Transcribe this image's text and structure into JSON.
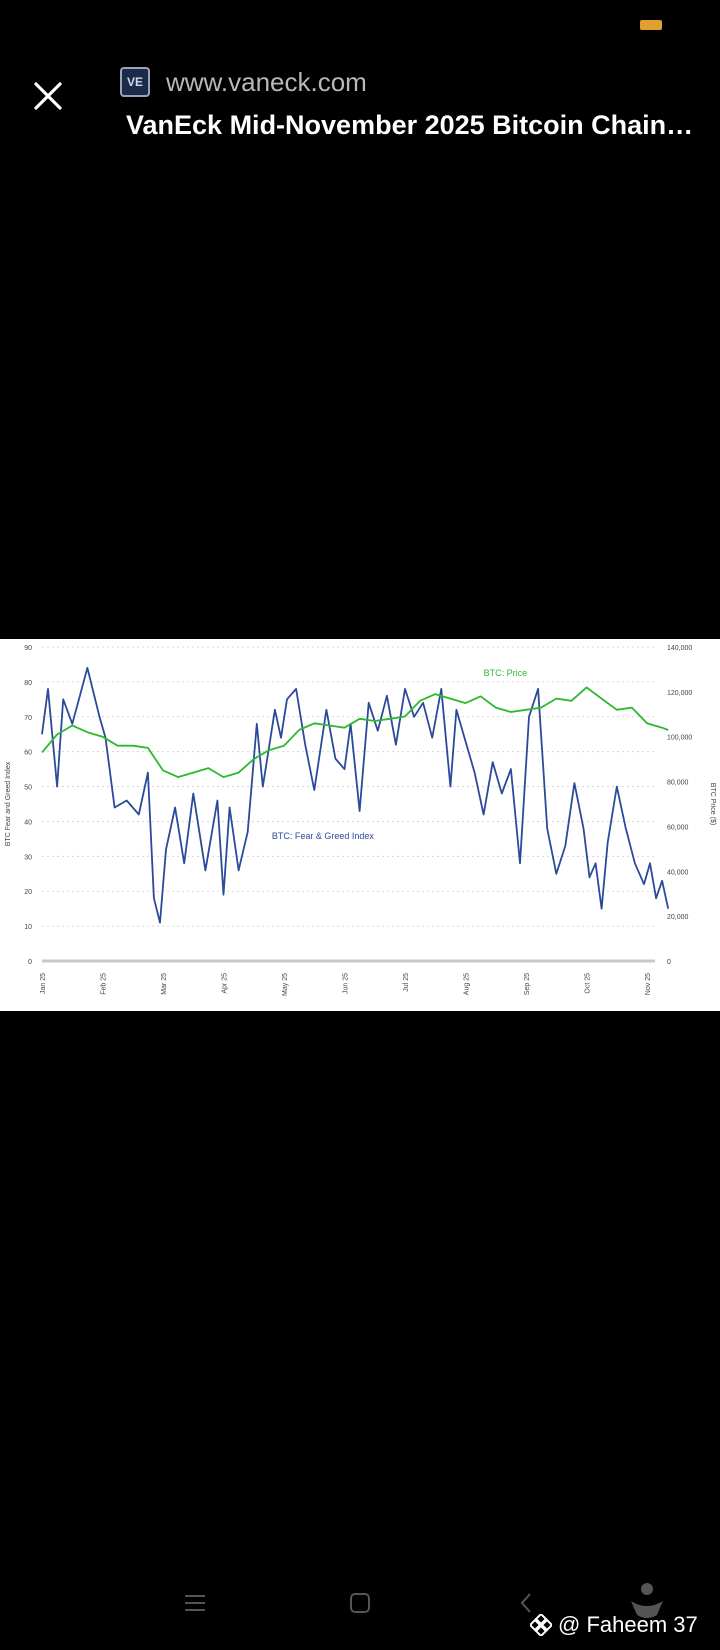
{
  "header": {
    "url": "www.vaneck.com",
    "title": "VanEck Mid-November 2025 Bitcoin Chain…",
    "favicon_text": "VE",
    "close_icon": "close-icon"
  },
  "watermark": {
    "text": "@ Faheem 37"
  },
  "nav": {
    "icons": [
      "menu-icon",
      "home-square-icon",
      "back-chevron-icon",
      "assistant-icon"
    ]
  },
  "colors": {
    "background": "#000000",
    "price_line": "#2eb82e",
    "index_line": "#2b4a9a",
    "battery": "#e0a030"
  },
  "chart_data": {
    "type": "line",
    "x_categories": [
      "Jan 25",
      "Feb 25",
      "Mar 25",
      "Apr 25",
      "May 25",
      "Jun 25",
      "Jul 25",
      "Aug 25",
      "Sep 25",
      "Oct 25",
      "Nov 25"
    ],
    "y_left": {
      "label": "BTC Fear and Greed Index",
      "ticks": [
        "0",
        "10",
        "20",
        "30",
        "40",
        "50",
        "60",
        "70",
        "80",
        "90"
      ],
      "range": [
        0,
        90
      ]
    },
    "y_right": {
      "label": "BTC Price ($)",
      "ticks": [
        "0",
        "20,000",
        "40,000",
        "60,000",
        "80,000",
        "100,000",
        "120,000",
        "140,000"
      ],
      "range": [
        0,
        140000
      ]
    },
    "grid": true,
    "series": [
      {
        "name": "BTC: Fear & Greed Index",
        "axis": "left",
        "x": [
          0,
          0.1,
          0.25,
          0.35,
          0.5,
          0.75,
          0.95,
          1.05,
          1.2,
          1.4,
          1.6,
          1.75,
          1.85,
          1.95,
          2.05,
          2.2,
          2.35,
          2.5,
          2.7,
          2.9,
          3.0,
          3.1,
          3.25,
          3.4,
          3.55,
          3.65,
          3.75,
          3.85,
          3.95,
          4.05,
          4.2,
          4.35,
          4.5,
          4.7,
          4.85,
          5.0,
          5.1,
          5.25,
          5.4,
          5.55,
          5.7,
          5.85,
          6.0,
          6.15,
          6.3,
          6.45,
          6.6,
          6.75,
          6.85,
          7.0,
          7.15,
          7.3,
          7.45,
          7.6,
          7.75,
          7.9,
          8.05,
          8.2,
          8.35,
          8.5,
          8.65,
          8.8,
          8.95,
          9.05,
          9.15,
          9.25,
          9.35,
          9.5,
          9.65,
          9.8,
          9.95,
          10.05,
          10.15,
          10.25,
          10.35
        ],
        "values": [
          65,
          78,
          50,
          75,
          68,
          84,
          70,
          64,
          44,
          46,
          42,
          54,
          18,
          11,
          32,
          44,
          28,
          48,
          26,
          46,
          19,
          44,
          26,
          37,
          68,
          50,
          61,
          72,
          64,
          75,
          78,
          62,
          49,
          72,
          58,
          55,
          68,
          43,
          74,
          66,
          76,
          62,
          78,
          70,
          74,
          64,
          78,
          50,
          72,
          63,
          54,
          42,
          57,
          48,
          55,
          28,
          70,
          78,
          38,
          25,
          33,
          51,
          38,
          24,
          28,
          15,
          34,
          50,
          38,
          28,
          22,
          28,
          18,
          23,
          15
        ]
      },
      {
        "name": "BTC: Price",
        "axis": "right",
        "x": [
          0,
          0.25,
          0.5,
          0.75,
          1.0,
          1.25,
          1.5,
          1.75,
          2.0,
          2.25,
          2.5,
          2.75,
          3.0,
          3.25,
          3.5,
          3.75,
          4.0,
          4.25,
          4.5,
          4.75,
          5.0,
          5.25,
          5.5,
          5.75,
          6.0,
          6.25,
          6.5,
          6.75,
          7.0,
          7.25,
          7.5,
          7.75,
          8.0,
          8.25,
          8.5,
          8.75,
          9.0,
          9.25,
          9.5,
          9.75,
          10.0,
          10.25,
          10.35
        ],
        "values": [
          93000,
          101000,
          105000,
          102000,
          100000,
          96000,
          96000,
          95000,
          85000,
          82000,
          84000,
          86000,
          82000,
          84000,
          90000,
          94000,
          96000,
          103000,
          106000,
          105000,
          104000,
          108000,
          107000,
          108000,
          109000,
          116000,
          119000,
          117000,
          115000,
          118000,
          113000,
          111000,
          112000,
          113000,
          117000,
          116000,
          122000,
          117000,
          112000,
          113000,
          106000,
          104000,
          103000
        ]
      }
    ],
    "annotations": [
      "BTC: Price",
      "BTC: Fear & Greed Index"
    ]
  }
}
